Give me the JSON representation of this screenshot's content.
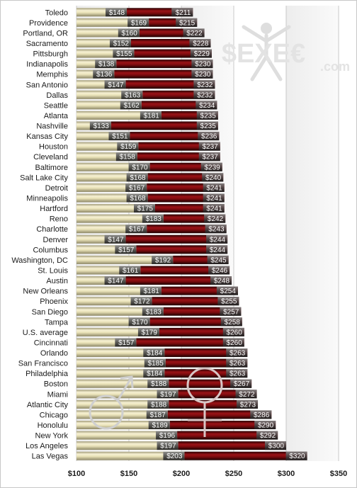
{
  "watermark": {
    "brand": "$EXE€",
    "suffix": ".com"
  },
  "chart_data": {
    "type": "bar",
    "orientation": "horizontal",
    "title": "",
    "xlabel": "",
    "ylabel": "",
    "xlim": [
      100,
      350
    ],
    "x_ticks": [
      "$100",
      "$150",
      "$200",
      "$250",
      "$300",
      "$350"
    ],
    "grid": true,
    "colors": {
      "light_segment": "#e9e2b8",
      "dark_segment": "#8e0f12",
      "value_tab": "#4a4a4a"
    },
    "categories": [
      "Toledo",
      "Providence",
      "Portland, OR",
      "Sacramento",
      "Pittsburgh",
      "Indianapolis",
      "Memphis",
      "San Antonio",
      "Dallas",
      "Seattle",
      "Atlanta",
      "Nashville",
      "Kansas City",
      "Houston",
      "Cleveland",
      "Baltimore",
      "Salt Lake City",
      "Detroit",
      "Minneapolis",
      "Hartford",
      "Reno",
      "Charlotte",
      "Denver",
      "Columbus",
      "Washington, DC",
      "St. Louis",
      "Austin",
      "New Orleans",
      "Phoenix",
      "San Diego",
      "Tampa",
      "U.S. average",
      "Cincinnati",
      "Orlando",
      "San Francisco",
      "Philadelphia",
      "Boston",
      "Miami",
      "Atlantic City",
      "Chicago",
      "Honolulu",
      "New York",
      "Los Angeles",
      "Las Vegas"
    ],
    "series": [
      {
        "values": [
          148,
          169,
          160,
          152,
          155,
          138,
          136,
          147,
          163,
          162,
          181,
          133,
          151,
          159,
          158,
          170,
          168,
          167,
          168,
          175,
          183,
          167,
          147,
          157,
          192,
          161,
          147,
          181,
          172,
          183,
          170,
          179,
          157,
          184,
          185,
          184,
          188,
          197,
          188,
          187,
          189,
          196,
          197,
          203
        ],
        "labels": [
          "$148",
          "$169",
          "$160",
          "$152",
          "$155",
          "$138",
          "$136",
          "$147",
          "$163",
          "$162",
          "$181",
          "$133",
          "$151",
          "$159",
          "$158",
          "$170",
          "$168",
          "$167",
          "$168",
          "$175",
          "$183",
          "$167",
          "$147",
          "$157",
          "$192",
          "$161",
          "$147",
          "$181",
          "$172",
          "$183",
          "$170",
          "$179",
          "$157",
          "$184",
          "$185",
          "$184",
          "$188",
          "$197",
          "$188",
          "$187",
          "$189",
          "$196",
          "$197",
          "$203"
        ]
      },
      {
        "values": [
          211,
          215,
          222,
          228,
          229,
          230,
          230,
          232,
          232,
          234,
          235,
          235,
          236,
          237,
          237,
          239,
          240,
          241,
          241,
          241,
          242,
          243,
          244,
          244,
          245,
          246,
          248,
          254,
          255,
          257,
          258,
          260,
          260,
          263,
          263,
          263,
          267,
          272,
          273,
          286,
          290,
          292,
          300,
          320
        ],
        "labels": [
          "$211",
          "$215",
          "$222",
          "$228",
          "$229",
          "$230",
          "$230",
          "$232",
          "$232",
          "$234",
          "$235",
          "$235",
          "$236",
          "$237",
          "$237",
          "$239",
          "$240",
          "$241",
          "$241",
          "$241",
          "$242",
          "$243",
          "$244",
          "$244",
          "$245",
          "$246",
          "$248",
          "$254",
          "$255",
          "$257",
          "$258",
          "$260",
          "$260",
          "$263",
          "$263",
          "$263",
          "$267",
          "$272",
          "$273",
          "$286",
          "$290",
          "$292",
          "$300",
          "$320"
        ]
      }
    ]
  }
}
